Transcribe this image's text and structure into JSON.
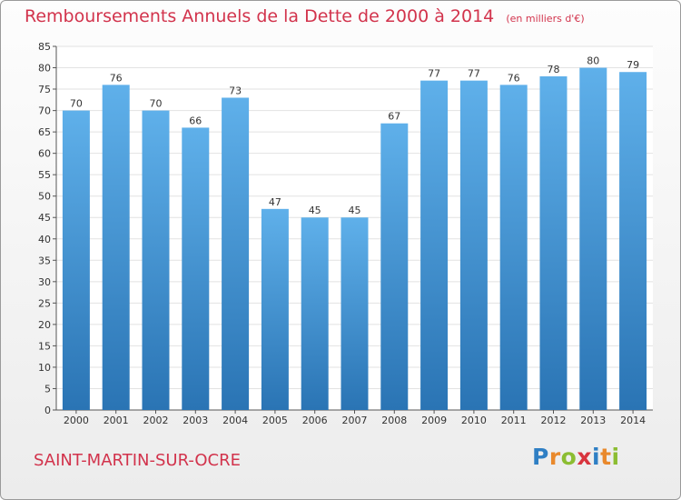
{
  "chart_data": {
    "type": "bar",
    "title": "Remboursements Annuels de la Dette de 2000 à 2014",
    "unit_note": "(en milliers d'€)",
    "categories": [
      "2000",
      "2001",
      "2002",
      "2003",
      "2004",
      "2005",
      "2006",
      "2007",
      "2008",
      "2009",
      "2010",
      "2011",
      "2012",
      "2013",
      "2014"
    ],
    "values": [
      70,
      76,
      70,
      66,
      73,
      47,
      45,
      45,
      67,
      77,
      77,
      76,
      78,
      80,
      79
    ],
    "ylim": [
      0,
      85
    ],
    "yticks": [
      0,
      5,
      10,
      15,
      20,
      25,
      30,
      35,
      40,
      45,
      50,
      55,
      60,
      65,
      70,
      75,
      80,
      85
    ],
    "xlabel": "",
    "ylabel": "",
    "grid": true
  },
  "commune_name": "SAINT-MARTIN-SUR-OCRE",
  "logo": {
    "letters": [
      {
        "ch": "P",
        "color": "#2f7fc4"
      },
      {
        "ch": "r",
        "color": "#e9892c"
      },
      {
        "ch": "o",
        "color": "#8cbd32"
      },
      {
        "ch": "x",
        "color": "#d8343e"
      },
      {
        "ch": "i",
        "color": "#2f7fc4"
      },
      {
        "ch": "t",
        "color": "#e9892c"
      },
      {
        "ch": "i",
        "color": "#8cbd32"
      }
    ]
  },
  "colors": {
    "bar_top": "#5fb0ea",
    "bar_bottom": "#2a74b4",
    "accent": "#d2334c",
    "grid": "#e2e2e2",
    "axis": "#555555"
  }
}
